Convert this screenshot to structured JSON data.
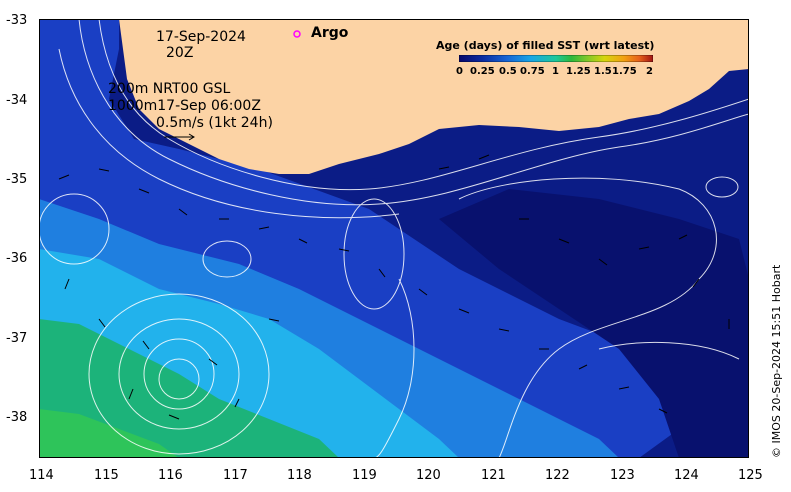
{
  "title": {
    "date": "17-Sep-2024",
    "time": "20Z"
  },
  "argo_label": "Argo",
  "current_info": {
    "line1": "200m  NRT00 GSL",
    "line2": "1000m17-Sep 06:00Z",
    "scale": "0.5m/s (1kt 24h)"
  },
  "legend": {
    "title": "Age (days) of filled SST (wrt latest)",
    "ticks": [
      "0",
      "0.25",
      "0.5",
      "0.75",
      "1",
      "1.25",
      "1.5",
      "1.75",
      "2"
    ],
    "colors": [
      "#08086b",
      "#0a2aa0",
      "#1666d6",
      "#18a6e6",
      "#1fc89a",
      "#2db83c",
      "#7fc82a",
      "#d6d60e",
      "#f2a010",
      "#e6601a",
      "#a01414"
    ]
  },
  "axes": {
    "x_ticks": [
      "114",
      "115",
      "116",
      "117",
      "118",
      "119",
      "120",
      "121",
      "122",
      "123",
      "124",
      "125"
    ],
    "y_ticks": [
      "-33",
      "-34",
      "-35",
      "-36",
      "-37",
      "-38"
    ]
  },
  "credit": "© IMOS 20-Sep-2024 15:51 Hobart",
  "colors": {
    "land": "#fcd3a5",
    "deep": "#0a1a7a",
    "mid": "#1432b8",
    "light": "#1e8ee8",
    "cyan": "#22b6ee",
    "green": "#1fb86a",
    "argo": "#ff00ff"
  }
}
